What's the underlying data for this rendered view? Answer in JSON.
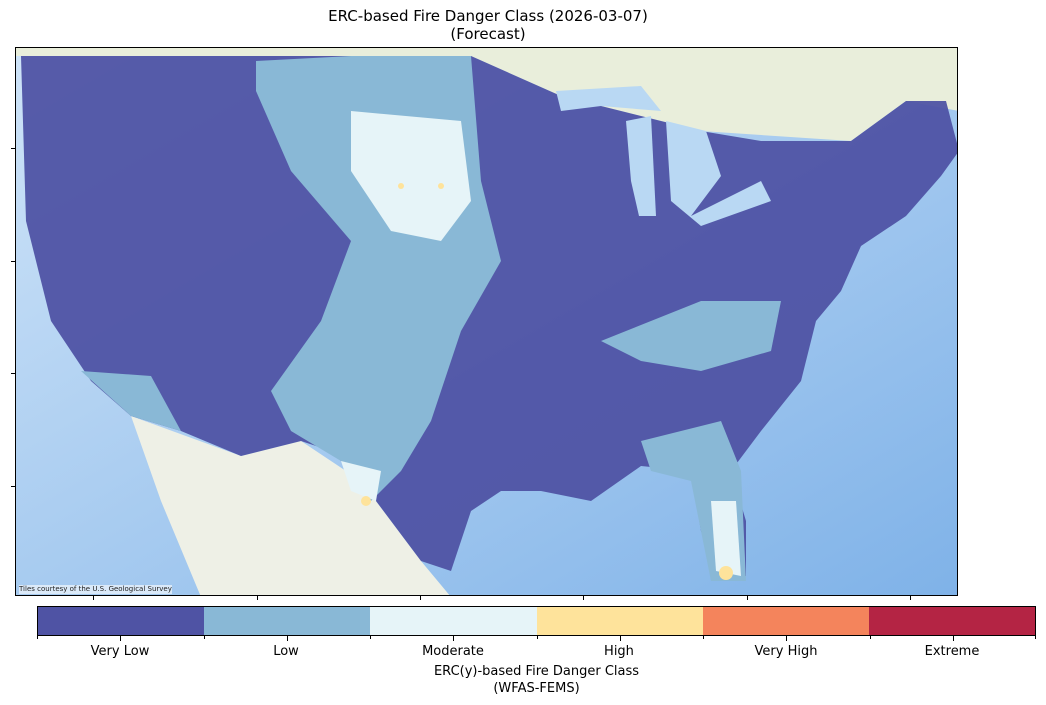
{
  "title_line1": "ERC-based Fire Danger Class (2026-03-07)",
  "title_line2": "(Forecast)",
  "attribution": "Tiles courtesy of the U.S. Geological Survey",
  "colorbar": {
    "label_line1": "ERC(y)-based Fire Danger Class",
    "label_line2": "(WFAS-FEMS)",
    "classes": [
      {
        "label": "Very Low",
        "color": "#4f53a4"
      },
      {
        "label": "Low",
        "color": "#89b8d6"
      },
      {
        "label": "Moderate",
        "color": "#e6f4f8"
      },
      {
        "label": "High",
        "color": "#fee39b"
      },
      {
        "label": "Very High",
        "color": "#f4845c"
      },
      {
        "label": "Extreme",
        "color": "#b42444"
      }
    ]
  }
}
